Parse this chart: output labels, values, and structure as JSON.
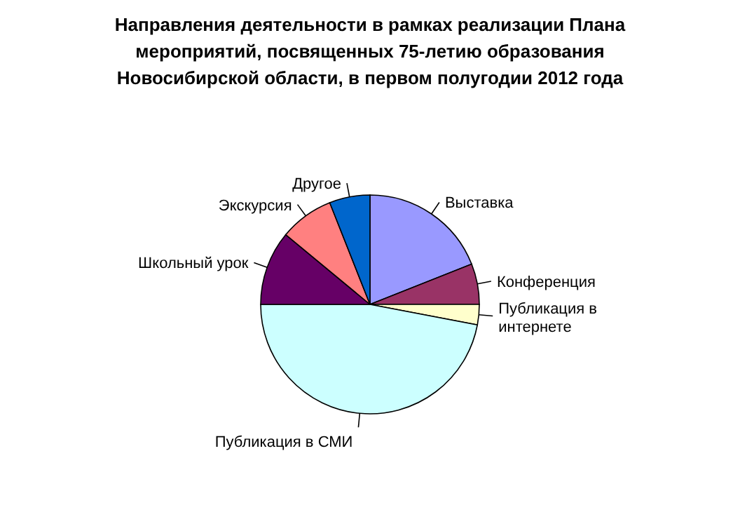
{
  "chart_data": {
    "type": "pie",
    "title": "Направления деятельности в рамках реализации Плана мероприятий, посвященных 75-летию образования Новосибирской области, в первом полугодии 2012 года",
    "categories": [
      "Выставка",
      "Конференция",
      "Публикация в интернете",
      "Публикация в СМИ",
      "Школьный урок",
      "Экскурсия",
      "Другое"
    ],
    "values": [
      19,
      6,
      3,
      47,
      11,
      8,
      6
    ],
    "colors": [
      "#9999ff",
      "#993366",
      "#ffffcc",
      "#ccffff",
      "#660066",
      "#ff8080",
      "#0066cc"
    ]
  }
}
